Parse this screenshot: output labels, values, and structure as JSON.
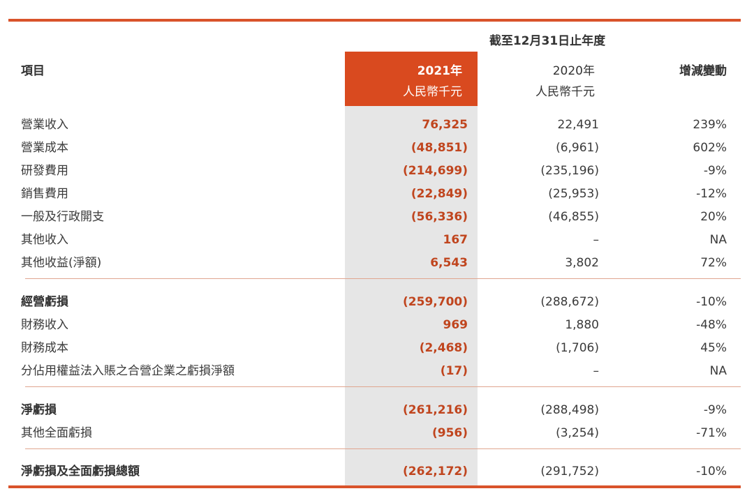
{
  "header": {
    "period": "截至12月31日止年度",
    "item_label": "項目",
    "col2021_year": "2021年",
    "col2021_unit": "人民幣千元",
    "col2020_year": "2020年",
    "col2020_unit": "人民幣千元",
    "change_label": "增減變動"
  },
  "colors": {
    "accent": "#d94a1f",
    "value_text": "#c0451e",
    "shade": "#e6e6e6"
  },
  "rows": [
    {
      "label": "營業收入",
      "v2021": "76,325",
      "v2020": "22,491",
      "change": "239%"
    },
    {
      "label": "營業成本",
      "v2021": "(48,851)",
      "v2020": "(6,961)",
      "change": "602%"
    },
    {
      "label": "研發費用",
      "v2021": "(214,699)",
      "v2020": "(235,196)",
      "change": "-9%"
    },
    {
      "label": "銷售費用",
      "v2021": "(22,849)",
      "v2020": "(25,953)",
      "change": "-12%"
    },
    {
      "label": "一般及行政開支",
      "v2021": "(56,336)",
      "v2020": "(46,855)",
      "change": "20%"
    },
    {
      "label": "其他收入",
      "v2021": "167",
      "v2020": "–",
      "change": "NA"
    },
    {
      "label": "其他收益(淨額)",
      "v2021": "6,543",
      "v2020": "3,802",
      "change": "72%"
    },
    {
      "label": "經營虧損",
      "v2021": "(259,700)",
      "v2020": "(288,672)",
      "change": "-10%"
    },
    {
      "label": "財務收入",
      "v2021": "969",
      "v2020": "1,880",
      "change": "-48%"
    },
    {
      "label": "財務成本",
      "v2021": "(2,468)",
      "v2020": "(1,706)",
      "change": "45%"
    },
    {
      "label": "分佔用權益法入賬之合營企業之虧損淨額",
      "v2021": "(17)",
      "v2020": "–",
      "change": "NA"
    },
    {
      "label": "淨虧損",
      "v2021": "(261,216)",
      "v2020": "(288,498)",
      "change": "-9%"
    },
    {
      "label": "其他全面虧損",
      "v2021": "(956)",
      "v2020": "(3,254)",
      "change": "-71%"
    },
    {
      "label": "淨虧損及全面虧損總額",
      "v2021": "(262,172)",
      "v2020": "(291,752)",
      "change": "-10%"
    }
  ]
}
